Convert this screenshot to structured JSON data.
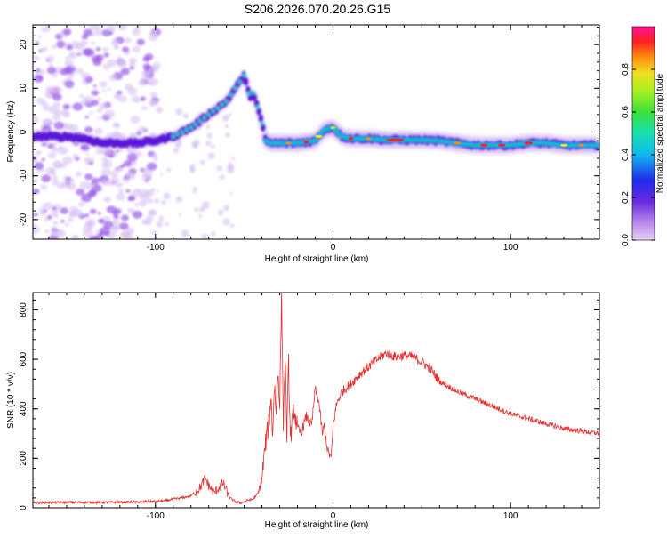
{
  "page_title": "S206.2026.070.20.26.G15",
  "chart_data": [
    {
      "type": "heatmap",
      "panel": "spectrogram",
      "xlabel": "Height of straight line (km)",
      "ylabel": "Frequency (Hz)",
      "xlim": [
        -169,
        150
      ],
      "ylim": [
        -24.5,
        24.5
      ],
      "xticks": [
        -100,
        0,
        100
      ],
      "xtick_labels": [
        "-100",
        "0",
        "100"
      ],
      "yticks": [
        -20,
        -10,
        0,
        10,
        20
      ],
      "ytick_labels": [
        "-20",
        "-10",
        "0",
        "10",
        "20"
      ],
      "ridge_trace": {
        "height_km": [
          -169,
          -160,
          -150,
          -140,
          -130,
          -120,
          -110,
          -100,
          -90,
          -80,
          -70,
          -60,
          -55,
          -50,
          -47,
          -45,
          -42,
          -40,
          -38,
          -35,
          -30,
          -20,
          -10,
          -5,
          0,
          5,
          10,
          20,
          30,
          40,
          50,
          60,
          70,
          80,
          90,
          100,
          110,
          120,
          130,
          140,
          150
        ],
        "frequency_hz": [
          -1,
          -1,
          -1,
          -1.5,
          -2.5,
          -2.5,
          -2.5,
          -2,
          -1,
          1,
          4,
          7,
          10,
          13,
          8,
          9,
          5,
          2,
          -2,
          -2.5,
          -2.5,
          -2.5,
          -2,
          0.5,
          1,
          -1,
          -1.5,
          -1.5,
          -1.8,
          -1.8,
          -1.8,
          -2,
          -2.5,
          -3,
          -3,
          -3,
          -2.5,
          -2.5,
          -3,
          -3,
          -3
        ]
      },
      "colorbar": {
        "label": "Normalized spectral amplitude",
        "range": [
          0,
          1
        ],
        "ticks": [
          0.0,
          0.2,
          0.4,
          0.6,
          0.8
        ],
        "tick_labels": [
          "0.0",
          "0.2",
          "0.4",
          "0.6",
          "0.8"
        ]
      }
    },
    {
      "type": "line",
      "panel": "snr",
      "xlabel": "Height of straight line (km)",
      "ylabel": "SNR (10 * v/v)",
      "xlim": [
        -169,
        150
      ],
      "ylim": [
        0,
        870
      ],
      "xticks": [
        -100,
        0,
        100
      ],
      "xtick_labels": [
        "-100",
        "0",
        "100"
      ],
      "yticks": [
        0,
        200,
        400,
        600,
        800
      ],
      "ytick_labels": [
        "0",
        "200",
        "400",
        "600",
        "800"
      ],
      "series": [
        {
          "name": "SNR",
          "color": "#e83030",
          "x": [
            -169,
            -150,
            -130,
            -110,
            -95,
            -90,
            -85,
            -80,
            -75,
            -72,
            -70,
            -67,
            -65,
            -62,
            -58,
            -55,
            -52,
            -48,
            -45,
            -42,
            -40,
            -38,
            -36,
            -35,
            -34,
            -33,
            -32,
            -31,
            -30,
            -29,
            -28,
            -27,
            -26,
            -25,
            -24,
            -22,
            -20,
            -18,
            -15,
            -12,
            -10,
            -8,
            -6,
            -5,
            -3,
            -1,
            0,
            2,
            5,
            10,
            15,
            20,
            25,
            30,
            35,
            40,
            45,
            50,
            55,
            60,
            70,
            80,
            90,
            100,
            110,
            120,
            130,
            140,
            150
          ],
          "y": [
            20,
            22,
            22,
            23,
            28,
            35,
            40,
            48,
            80,
            120,
            90,
            60,
            75,
            100,
            40,
            25,
            20,
            30,
            35,
            60,
            120,
            260,
            350,
            450,
            300,
            500,
            380,
            560,
            420,
            860,
            350,
            620,
            300,
            580,
            280,
            400,
            320,
            300,
            370,
            330,
            480,
            430,
            300,
            330,
            230,
            200,
            330,
            420,
            470,
            500,
            540,
            570,
            600,
            625,
            610,
            615,
            610,
            590,
            560,
            510,
            470,
            440,
            410,
            380,
            360,
            340,
            320,
            310,
            300
          ]
        }
      ]
    }
  ],
  "colors": {
    "snr_line": "#e83030",
    "heat_low": "#8a2be2",
    "heat_high": "#ff2020"
  }
}
